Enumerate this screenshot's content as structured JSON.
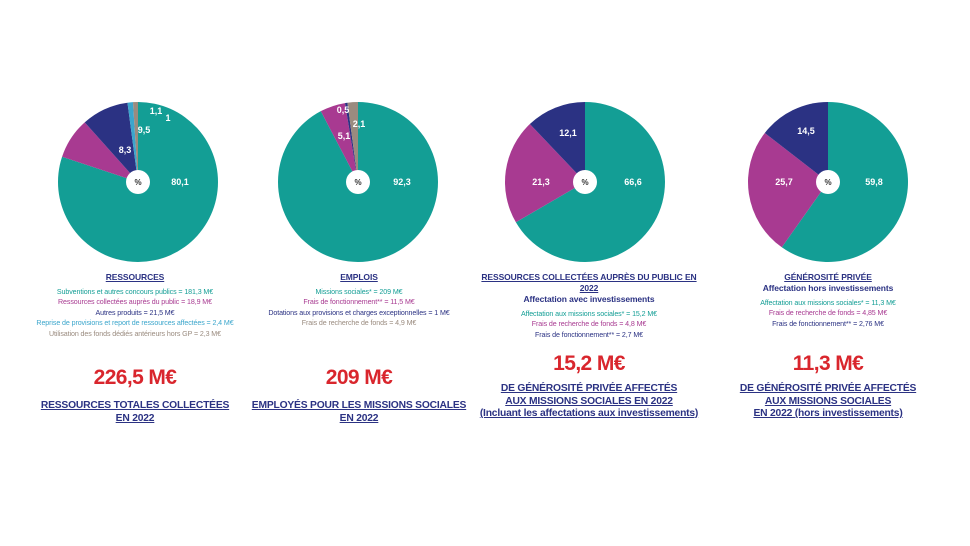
{
  "colors": {
    "teal": "#139e95",
    "magenta": "#a83a91",
    "navy": "#2b3283",
    "lightblue": "#3ba6cc",
    "grey": "#9a8b7f",
    "red": "#d9262d",
    "white": "#ffffff"
  },
  "chart_data": [
    {
      "type": "pie",
      "center_label": "%",
      "slices": [
        {
          "label": "Subventions et autres concours publics",
          "value": 80.1,
          "color": "#139e95",
          "display": "80,1"
        },
        {
          "label": "Ressources collectées auprès du public",
          "value": 8.3,
          "color": "#a83a91",
          "display": "8,3"
        },
        {
          "label": "Autres produits",
          "value": 9.5,
          "color": "#2b3283",
          "display": "9,5"
        },
        {
          "label": "Reprise de provisions et report de ressources affectées",
          "value": 1.1,
          "color": "#3ba6cc",
          "display": "1,1"
        },
        {
          "label": "Utilisation des fonds dédiés antérieurs hors GP",
          "value": 1,
          "color": "#9a8b7f",
          "display": "1"
        }
      ]
    },
    {
      "type": "pie",
      "center_label": "%",
      "slices": [
        {
          "label": "Missions sociales",
          "value": 92.3,
          "color": "#139e95",
          "display": "92,3"
        },
        {
          "label": "Frais de fonctionnement",
          "value": 5.1,
          "color": "#a83a91",
          "display": "5,1"
        },
        {
          "label": "Dotations aux provisions et charges exceptionnelles",
          "value": 0.5,
          "color": "#2b3283",
          "display": "0,5"
        },
        {
          "label": "Frais de recherche de fonds",
          "value": 2.1,
          "color": "#9a8b7f",
          "display": "2,1"
        }
      ]
    },
    {
      "type": "pie",
      "center_label": "%",
      "slices": [
        {
          "label": "Affectation aux missions sociales",
          "value": 66.6,
          "color": "#139e95",
          "display": "66,6"
        },
        {
          "label": "Frais de recherche de fonds",
          "value": 21.3,
          "color": "#a83a91",
          "display": "21,3"
        },
        {
          "label": "Frais de fonctionnement",
          "value": 12.1,
          "color": "#2b3283",
          "display": "12,1"
        }
      ]
    },
    {
      "type": "pie",
      "center_label": "%",
      "slices": [
        {
          "label": "Affectation aux missions sociales",
          "value": 59.8,
          "color": "#139e95",
          "display": "59,8"
        },
        {
          "label": "Frais de recherche de fonds",
          "value": 25.7,
          "color": "#a83a91",
          "display": "25,7"
        },
        {
          "label": "Frais de fonctionnement",
          "value": 14.5,
          "color": "#2b3283",
          "display": "14,5"
        }
      ]
    }
  ],
  "panels": [
    {
      "heading": [
        "RESSOURCES"
      ],
      "legend": [
        {
          "text": "Subventions et autres concours publics = 181,3 M€",
          "color": "#139e95"
        },
        {
          "text": "Ressources collectées auprès du public = 18,9 M€",
          "color": "#a83a91"
        },
        {
          "text": "Autres produits = 21,5 M€",
          "color": "#2b3283"
        },
        {
          "text": "Reprise de provisions et report de ressources  affectées = 2,4 M€",
          "color": "#3ba6cc"
        },
        {
          "text": "Utilisation des fonds dédiés antérieurs hors GP = 2,3 M€",
          "color": "#9a8b7f"
        }
      ],
      "big_number": "226,5 M€",
      "caption": [
        "RESSOURCES TOTALES COLLECTÉES",
        "EN 2022"
      ]
    },
    {
      "heading": [
        "EMPLOIS"
      ],
      "legend": [
        {
          "text": "Missions sociales* = 209 M€",
          "color": "#139e95"
        },
        {
          "text": "Frais de fonctionnement** = 11,5 M€",
          "color": "#a83a91"
        },
        {
          "text": "Dotations aux provisions et charges  exceptionnelles = 1 M€",
          "color": "#2b3283"
        },
        {
          "text": "Frais de recherche de fonds = 4,9 M€",
          "color": "#9a8b7f"
        }
      ],
      "big_number": "209 M€",
      "caption": [
        "EMPLOYÉS POUR LES MISSIONS SOCIALES",
        "EN 2022"
      ]
    },
    {
      "heading": [
        "RESSOURCES COLLECTÉES AUPRÈS DU PUBLIC EN 2022",
        "Affectation avec investissements"
      ],
      "legend": [
        {
          "text": "Affectation aux missions sociales* = 15,2 M€",
          "color": "#139e95"
        },
        {
          "text": "Frais de recherche de fonds = 4,8 M€",
          "color": "#a83a91"
        },
        {
          "text": "Frais de fonctionnement** = 2,7 M€",
          "color": "#2b3283"
        }
      ],
      "big_number": "15,2 M€",
      "caption": [
        "DE GÉNÉROSITÉ PRIVÉE AFFECTÉS",
        "AUX MISSIONS SOCIALES EN 2022",
        "(Incluant les affectations aux investissements)"
      ]
    },
    {
      "heading": [
        "GÉNÉROSITÉ PRIVÉE",
        "Affectation hors investissements"
      ],
      "legend": [
        {
          "text": "Affectation aux missions sociales* = 11,3 M€",
          "color": "#139e95"
        },
        {
          "text": "Frais de recherche de fonds = 4,85 M€",
          "color": "#a83a91"
        },
        {
          "text": "Frais de fonctionnement** = 2,76 M€",
          "color": "#2b3283"
        }
      ],
      "big_number": "11,3 M€",
      "caption": [
        "DE GÉNÉROSITÉ PRIVÉE AFFECTÉS",
        "AUX MISSIONS SOCIALES",
        "EN 2022 (hors investissements)"
      ]
    }
  ]
}
